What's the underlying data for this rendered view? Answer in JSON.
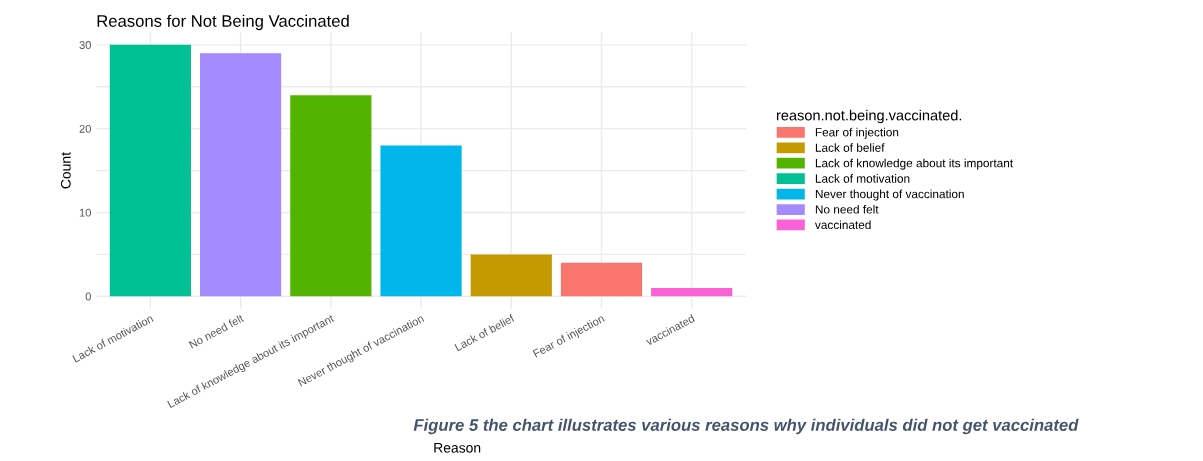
{
  "chart_data": {
    "type": "bar",
    "title": "Reasons for Not Being Vaccinated",
    "xlabel": "Reason",
    "ylabel": "Count",
    "legend_title": "reason.not.being.vaccinated.",
    "categories": [
      "Lack of motivation",
      "No need felt",
      "Lack of knowledge about its important",
      "Never thought of vaccination",
      "Lack of belief",
      "Fear of injection",
      "vaccinated"
    ],
    "series": [
      {
        "name": "Fear of injection",
        "color": "#f8766d",
        "values": [
          null,
          null,
          null,
          null,
          null,
          4,
          null
        ]
      },
      {
        "name": "Lack of belief",
        "color": "#c49a00",
        "values": [
          null,
          null,
          null,
          null,
          5,
          null,
          null
        ]
      },
      {
        "name": "Lack of knowledge about its important",
        "color": "#53b400",
        "values": [
          null,
          null,
          24,
          null,
          null,
          null,
          null
        ]
      },
      {
        "name": "Lack of motivation",
        "color": "#00c094",
        "values": [
          30,
          null,
          null,
          null,
          null,
          null,
          null
        ]
      },
      {
        "name": "Never thought of vaccination",
        "color": "#00b6eb",
        "values": [
          null,
          null,
          null,
          18,
          null,
          null,
          null
        ]
      },
      {
        "name": "No need felt",
        "color": "#a58aff",
        "values": [
          null,
          29,
          null,
          null,
          null,
          null,
          null
        ]
      },
      {
        "name": "vaccinated",
        "color": "#fb61d7",
        "values": [
          null,
          null,
          null,
          null,
          null,
          null,
          1
        ]
      }
    ],
    "ylim": [
      -1.5,
      31.5
    ],
    "yticks": [
      0,
      {
        "value": 5,
        "label": null
      },
      10,
      {
        "value": 15,
        "label": null
      },
      20,
      {
        "value": 25,
        "label": null
      },
      30
    ],
    "grid": true,
    "legend": "right",
    "annotations": [
      "Figure 5 the chart illustrates various reasons why individuals did not get vaccinated"
    ]
  }
}
